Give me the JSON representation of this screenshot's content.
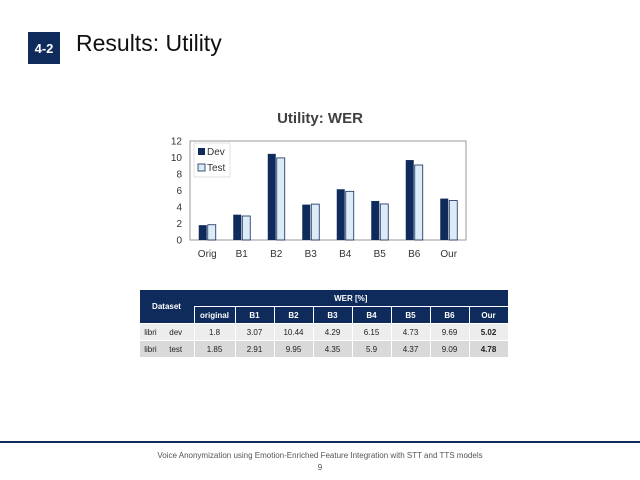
{
  "slide": {
    "section_badge": "4-2",
    "title": "Results: Utility",
    "footer": "Voice Anonymization using Emotion-Enriched Feature Integration with STT and TTS models",
    "page_number": "9"
  },
  "colors": {
    "dark_navy": "#0f2b5b",
    "dev_fill": "#0f2b5b",
    "test_fill": "#ddebf7",
    "test_stroke": "#0f2b5b"
  },
  "chart_data": {
    "type": "bar",
    "title": "Utility: WER",
    "categories": [
      "Orig",
      "B1",
      "B2",
      "B3",
      "B4",
      "B5",
      "B6",
      "Our"
    ],
    "series": [
      {
        "name": "Dev",
        "values": [
          1.8,
          3.07,
          10.44,
          4.29,
          6.15,
          4.73,
          9.69,
          5.02
        ]
      },
      {
        "name": "Test",
        "values": [
          1.85,
          2.91,
          9.95,
          4.35,
          5.9,
          4.37,
          9.09,
          4.78
        ]
      }
    ],
    "ylim": [
      0,
      12
    ],
    "yticks": [
      "0",
      "2",
      "4",
      "6",
      "8",
      "10",
      "12"
    ],
    "legend_position": "top-left inside",
    "grid": false
  },
  "table": {
    "dataset_header": "Dataset",
    "group_header": "WER [%]",
    "columns": [
      "original",
      "B1",
      "B2",
      "B3",
      "B4",
      "B5",
      "B6",
      "Our"
    ],
    "rows": [
      {
        "dataset": "libri",
        "split": "dev",
        "values": [
          "1.8",
          "3.07",
          "10.44",
          "4.29",
          "6.15",
          "4.73",
          "9.69",
          "5.02"
        ]
      },
      {
        "dataset": "libri",
        "split": "test",
        "values": [
          "1.85",
          "2.91",
          "9.95",
          "4.35",
          "5.9",
          "4.37",
          "9.09",
          "4.78"
        ]
      }
    ]
  }
}
